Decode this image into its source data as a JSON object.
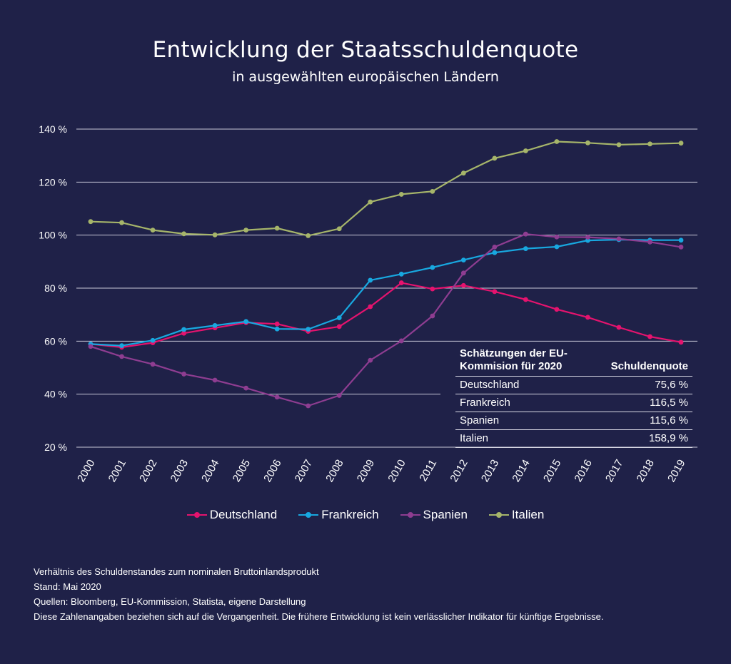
{
  "title": "Entwicklung der Staatsschuldenquote",
  "subtitle": "in ausgewählten europäischen Ländern",
  "chart_data": {
    "type": "line",
    "x": [
      "2000",
      "2001",
      "2002",
      "2003",
      "2004",
      "2005",
      "2006",
      "2007",
      "2008",
      "2009",
      "2010",
      "2011",
      "2012",
      "2013",
      "2014",
      "2015",
      "2016",
      "2017",
      "2018",
      "2019"
    ],
    "y_ticks": [
      "20 %",
      "40 %",
      "60 %",
      "80 %",
      "100 %",
      "120 %",
      "140 %"
    ],
    "ylim": [
      20,
      140
    ],
    "grid": true,
    "legend_position": "bottom",
    "series": [
      {
        "name": "Deutschland",
        "color": "#e5136e",
        "values": [
          58.9,
          57.7,
          59.4,
          63.0,
          65.0,
          67.0,
          66.5,
          63.7,
          65.5,
          73.0,
          82.0,
          79.7,
          81.0,
          78.7,
          75.7,
          72.0,
          69.0,
          65.2,
          61.7,
          59.6
        ]
      },
      {
        "name": "Frankreich",
        "color": "#18a8e0",
        "values": [
          58.9,
          58.3,
          60.3,
          64.4,
          65.9,
          67.4,
          64.6,
          64.5,
          68.8,
          83.0,
          85.3,
          87.8,
          90.6,
          93.4,
          94.9,
          95.6,
          98.0,
          98.3,
          98.1,
          98.1
        ]
      },
      {
        "name": "Spanien",
        "color": "#8e3d91",
        "values": [
          58.0,
          54.2,
          51.3,
          47.6,
          45.3,
          42.3,
          38.9,
          35.6,
          39.5,
          52.8,
          60.1,
          69.5,
          85.7,
          95.5,
          100.4,
          99.3,
          99.2,
          98.6,
          97.4,
          95.5
        ]
      },
      {
        "name": "Italien",
        "color": "#a6b56a",
        "values": [
          105.1,
          104.7,
          101.9,
          100.5,
          100.1,
          101.9,
          102.6,
          99.8,
          102.4,
          112.5,
          115.4,
          116.5,
          123.4,
          129.0,
          131.8,
          135.3,
          134.8,
          134.1,
          134.4,
          134.7
        ]
      }
    ]
  },
  "estimate_table": {
    "header_left": "Schätzungen der EU-Kommision für 2020",
    "header_right": "Schuldenquote",
    "rows": [
      {
        "country": "Deutschland",
        "value": "75,6 %"
      },
      {
        "country": "Frankreich",
        "value": "116,5 %"
      },
      {
        "country": "Spanien",
        "value": "115,6 %"
      },
      {
        "country": "Italien",
        "value": "158,9 %"
      }
    ]
  },
  "notes": [
    "Verhältnis des Schuldenstandes zum nominalen Bruttoinlandsprodukt",
    "Stand: Mai 2020",
    "Quellen: Bloomberg, EU-Kommission, Statista, eigene Darstellung",
    "Diese Zahlenangaben beziehen sich auf die Vergangenheit. Die frühere Entwicklung ist kein verlässlicher Indikator für künftige Ergebnisse."
  ]
}
